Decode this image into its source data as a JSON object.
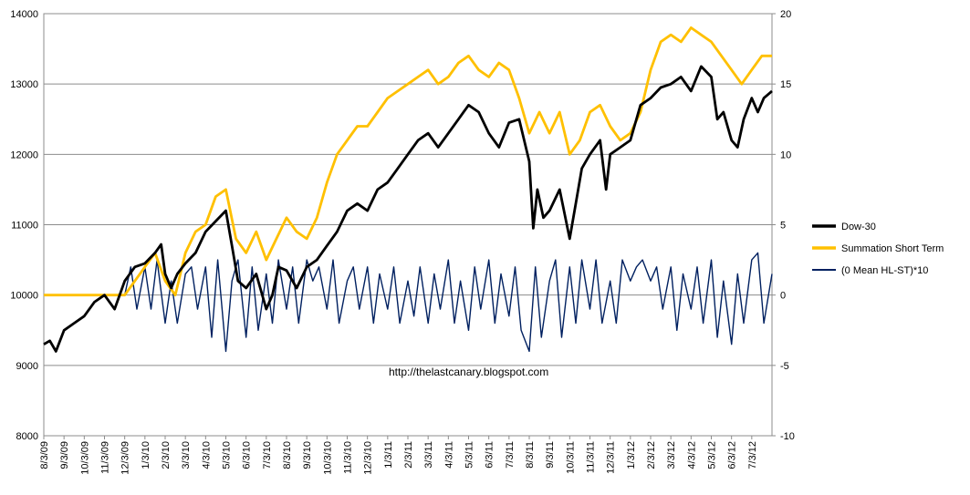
{
  "chart_data": {
    "type": "line",
    "title": "",
    "watermark": "http://thelastcanary.blogspot.com",
    "xlabel": "",
    "ylabel": "",
    "x_tick_labels": [
      "8/3/09",
      "9/3/09",
      "10/3/09",
      "11/3/09",
      "12/3/09",
      "1/3/10",
      "2/3/10",
      "3/3/10",
      "4/3/10",
      "5/3/10",
      "6/3/10",
      "7/3/10",
      "8/3/10",
      "9/3/10",
      "10/3/10",
      "11/3/10",
      "12/3/10",
      "1/3/11",
      "2/3/11",
      "3/3/11",
      "4/3/11",
      "5/3/11",
      "6/3/11",
      "7/3/11",
      "8/3/11",
      "9/3/11",
      "10/3/11",
      "11/3/11",
      "12/3/11",
      "1/3/12",
      "2/3/12",
      "3/3/12",
      "4/3/12",
      "5/3/12",
      "6/3/12",
      "7/3/12"
    ],
    "x_months_total": 36,
    "y_left": {
      "min": 8000,
      "max": 14000,
      "step": 1000,
      "ticks": [
        "8000",
        "9000",
        "10000",
        "11000",
        "12000",
        "13000",
        "14000"
      ]
    },
    "y_right": {
      "min": -10,
      "max": 20,
      "step": 5,
      "ticks": [
        "-10",
        "-5",
        "0",
        "5",
        "10",
        "15",
        "20"
      ]
    },
    "grid": "horizontal",
    "legend_position": "right",
    "series": [
      {
        "name": "Dow-30",
        "color": "#000000",
        "axis": "left",
        "points": [
          [
            0,
            9300
          ],
          [
            0.3,
            9350
          ],
          [
            0.6,
            9200
          ],
          [
            1,
            9500
          ],
          [
            1.5,
            9600
          ],
          [
            2,
            9700
          ],
          [
            2.5,
            9900
          ],
          [
            3,
            10000
          ],
          [
            3.5,
            9800
          ],
          [
            4,
            10200
          ],
          [
            4.5,
            10400
          ],
          [
            5,
            10450
          ],
          [
            5.5,
            10600
          ],
          [
            5.8,
            10720
          ],
          [
            6,
            10300
          ],
          [
            6.3,
            10100
          ],
          [
            6.6,
            10300
          ],
          [
            7,
            10450
          ],
          [
            7.5,
            10600
          ],
          [
            8,
            10900
          ],
          [
            8.5,
            11050
          ],
          [
            9,
            11200
          ],
          [
            9.3,
            10700
          ],
          [
            9.6,
            10200
          ],
          [
            10,
            10100
          ],
          [
            10.5,
            10300
          ],
          [
            11,
            9800
          ],
          [
            11.3,
            10000
          ],
          [
            11.6,
            10400
          ],
          [
            12,
            10350
          ],
          [
            12.5,
            10100
          ],
          [
            13,
            10400
          ],
          [
            13.5,
            10500
          ],
          [
            14,
            10700
          ],
          [
            14.5,
            10900
          ],
          [
            15,
            11200
          ],
          [
            15.5,
            11300
          ],
          [
            16,
            11200
          ],
          [
            16.5,
            11500
          ],
          [
            17,
            11600
          ],
          [
            17.5,
            11800
          ],
          [
            18,
            12000
          ],
          [
            18.5,
            12200
          ],
          [
            19,
            12300
          ],
          [
            19.5,
            12100
          ],
          [
            20,
            12300
          ],
          [
            20.5,
            12500
          ],
          [
            21,
            12700
          ],
          [
            21.5,
            12600
          ],
          [
            22,
            12300
          ],
          [
            22.5,
            12100
          ],
          [
            23,
            12450
          ],
          [
            23.5,
            12500
          ],
          [
            24,
            11900
          ],
          [
            24.2,
            10950
          ],
          [
            24.4,
            11500
          ],
          [
            24.7,
            11100
          ],
          [
            25,
            11200
          ],
          [
            25.5,
            11500
          ],
          [
            26,
            10800
          ],
          [
            26.3,
            11300
          ],
          [
            26.6,
            11800
          ],
          [
            27,
            12000
          ],
          [
            27.5,
            12200
          ],
          [
            27.8,
            11500
          ],
          [
            28,
            12000
          ],
          [
            28.5,
            12100
          ],
          [
            29,
            12200
          ],
          [
            29.5,
            12700
          ],
          [
            30,
            12800
          ],
          [
            30.5,
            12950
          ],
          [
            31,
            13000
          ],
          [
            31.5,
            13100
          ],
          [
            32,
            12900
          ],
          [
            32.5,
            13250
          ],
          [
            33,
            13100
          ],
          [
            33.3,
            12500
          ],
          [
            33.6,
            12600
          ],
          [
            34,
            12200
          ],
          [
            34.3,
            12100
          ],
          [
            34.6,
            12500
          ],
          [
            35,
            12800
          ],
          [
            35.3,
            12600
          ],
          [
            35.6,
            12800
          ],
          [
            36,
            12900
          ]
        ]
      },
      {
        "name": "Summation Short Term",
        "color": "#FFC000",
        "axis": "right",
        "points": [
          [
            0,
            0
          ],
          [
            4,
            0
          ],
          [
            5,
            2
          ],
          [
            5.5,
            3
          ],
          [
            6,
            1
          ],
          [
            6.5,
            0
          ],
          [
            7,
            3
          ],
          [
            7.5,
            4.5
          ],
          [
            8,
            5
          ],
          [
            8.5,
            7
          ],
          [
            9,
            7.5
          ],
          [
            9.5,
            4
          ],
          [
            10,
            3
          ],
          [
            10.5,
            4.5
          ],
          [
            11,
            2.5
          ],
          [
            11.5,
            4
          ],
          [
            12,
            5.5
          ],
          [
            12.5,
            4.5
          ],
          [
            13,
            4
          ],
          [
            13.5,
            5.5
          ],
          [
            14,
            8
          ],
          [
            14.5,
            10
          ],
          [
            15,
            11
          ],
          [
            15.5,
            12
          ],
          [
            16,
            12
          ],
          [
            16.5,
            13
          ],
          [
            17,
            14
          ],
          [
            17.5,
            14.5
          ],
          [
            18,
            15
          ],
          [
            18.5,
            15.5
          ],
          [
            19,
            16
          ],
          [
            19.5,
            15
          ],
          [
            20,
            15.5
          ],
          [
            20.5,
            16.5
          ],
          [
            21,
            17
          ],
          [
            21.5,
            16
          ],
          [
            22,
            15.5
          ],
          [
            22.5,
            16.5
          ],
          [
            23,
            16
          ],
          [
            23.5,
            14
          ],
          [
            24,
            11.5
          ],
          [
            24.5,
            13
          ],
          [
            25,
            11.5
          ],
          [
            25.5,
            13
          ],
          [
            26,
            10
          ],
          [
            26.5,
            11
          ],
          [
            27,
            13
          ],
          [
            27.5,
            13.5
          ],
          [
            28,
            12
          ],
          [
            28.5,
            11
          ],
          [
            29,
            11.5
          ],
          [
            29.5,
            13
          ],
          [
            30,
            16
          ],
          [
            30.5,
            18
          ],
          [
            31,
            18.5
          ],
          [
            31.5,
            18
          ],
          [
            32,
            19
          ],
          [
            32.5,
            18.5
          ],
          [
            33,
            18
          ],
          [
            33.5,
            17
          ],
          [
            34,
            16
          ],
          [
            34.5,
            15
          ],
          [
            35,
            16
          ],
          [
            35.5,
            17
          ],
          [
            36,
            17
          ]
        ]
      },
      {
        "name": "(0 Mean HL-ST)*10",
        "color": "#002060",
        "axis": "right",
        "points": [
          [
            4,
            0
          ],
          [
            4.3,
            2
          ],
          [
            4.6,
            -1
          ],
          [
            5,
            2
          ],
          [
            5.3,
            -1
          ],
          [
            5.6,
            2.5
          ],
          [
            6,
            -2
          ],
          [
            6.3,
            1
          ],
          [
            6.6,
            -2
          ],
          [
            7,
            1.5
          ],
          [
            7.3,
            2
          ],
          [
            7.6,
            -1
          ],
          [
            8,
            2
          ],
          [
            8.3,
            -3
          ],
          [
            8.6,
            2.5
          ],
          [
            9,
            -4
          ],
          [
            9.3,
            1
          ],
          [
            9.6,
            2.5
          ],
          [
            10,
            -3
          ],
          [
            10.3,
            2
          ],
          [
            10.6,
            -2.5
          ],
          [
            11,
            1.5
          ],
          [
            11.3,
            -2
          ],
          [
            11.6,
            2.5
          ],
          [
            12,
            -1
          ],
          [
            12.3,
            2
          ],
          [
            12.6,
            -2
          ],
          [
            13,
            2.5
          ],
          [
            13.3,
            1
          ],
          [
            13.6,
            2
          ],
          [
            14,
            -1
          ],
          [
            14.3,
            2.5
          ],
          [
            14.6,
            -2
          ],
          [
            15,
            1
          ],
          [
            15.3,
            2
          ],
          [
            15.6,
            -1
          ],
          [
            16,
            2
          ],
          [
            16.3,
            -2
          ],
          [
            16.6,
            1.5
          ],
          [
            17,
            -1
          ],
          [
            17.3,
            2
          ],
          [
            17.6,
            -2
          ],
          [
            18,
            1
          ],
          [
            18.3,
            -1.5
          ],
          [
            18.6,
            2
          ],
          [
            19,
            -2
          ],
          [
            19.3,
            1.5
          ],
          [
            19.6,
            -1
          ],
          [
            20,
            2.5
          ],
          [
            20.3,
            -2
          ],
          [
            20.6,
            1
          ],
          [
            21,
            -2.5
          ],
          [
            21.3,
            2
          ],
          [
            21.6,
            -1
          ],
          [
            22,
            2.5
          ],
          [
            22.3,
            -2
          ],
          [
            22.6,
            1.5
          ],
          [
            23,
            -1.5
          ],
          [
            23.3,
            2
          ],
          [
            23.6,
            -2.5
          ],
          [
            24,
            -4
          ],
          [
            24.3,
            2
          ],
          [
            24.6,
            -3
          ],
          [
            25,
            1
          ],
          [
            25.3,
            2.5
          ],
          [
            25.6,
            -3
          ],
          [
            26,
            2
          ],
          [
            26.3,
            -2
          ],
          [
            26.6,
            2.5
          ],
          [
            27,
            -1
          ],
          [
            27.3,
            2.5
          ],
          [
            27.6,
            -2
          ],
          [
            28,
            1
          ],
          [
            28.3,
            -2
          ],
          [
            28.6,
            2.5
          ],
          [
            29,
            1
          ],
          [
            29.3,
            2
          ],
          [
            29.6,
            2.5
          ],
          [
            30,
            1
          ],
          [
            30.3,
            2
          ],
          [
            30.6,
            -1
          ],
          [
            31,
            2
          ],
          [
            31.3,
            -2.5
          ],
          [
            31.6,
            1.5
          ],
          [
            32,
            -1
          ],
          [
            32.3,
            2
          ],
          [
            32.6,
            -2
          ],
          [
            33,
            2.5
          ],
          [
            33.3,
            -3
          ],
          [
            33.6,
            1
          ],
          [
            34,
            -3.5
          ],
          [
            34.3,
            1.5
          ],
          [
            34.6,
            -2
          ],
          [
            35,
            2.5
          ],
          [
            35.3,
            3
          ],
          [
            35.6,
            -2
          ],
          [
            36,
            1.5
          ]
        ]
      }
    ]
  }
}
